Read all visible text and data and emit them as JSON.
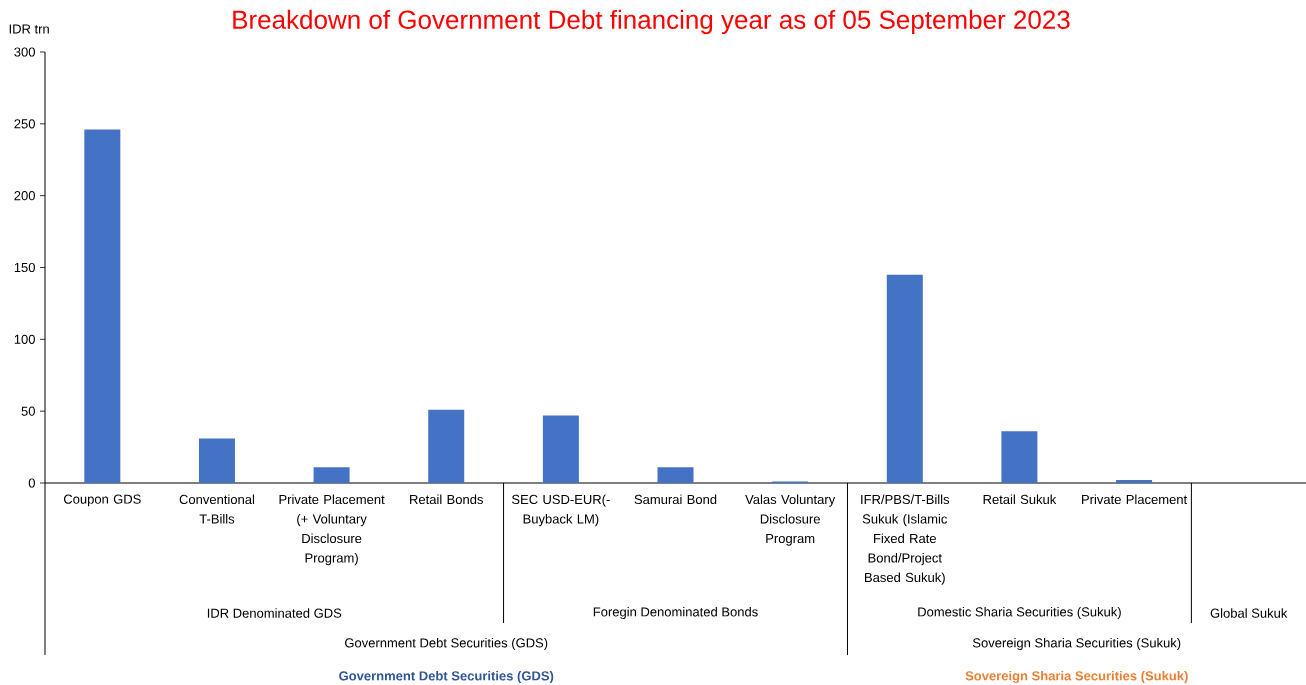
{
  "chart_data": {
    "type": "bar",
    "title": "Breakdown of Government Debt financing year as of 05 September 2023",
    "ylabel": "IDR trn",
    "categories": [
      "Coupon GDS",
      "Conventional T-Bills",
      "Private Placement (+ Voluntary Disclosure Program)",
      "Retail Bonds",
      "SEC USD-EUR(-Buyback LM)",
      "Samurai Bond",
      "Valas Voluntary Disclosure Program",
      "IFR/PBS/T-Bills Sukuk (Islamic Fixed Rate Bond/Project Based Sukuk)",
      "Retail Sukuk",
      "Private Placement",
      null
    ],
    "values": [
      246,
      31,
      11,
      51,
      47,
      11,
      1,
      145,
      36,
      2,
      null
    ],
    "color": "#4472c4",
    "ylim": [
      0,
      300
    ],
    "yticks": [
      0,
      50,
      100,
      150,
      200,
      250,
      300
    ],
    "annotations": [
      "IDR Denominated GDS",
      "Foregin Denominated Bonds",
      "Domestic Sharia Securities (Sukuk)",
      "Global Sukuk",
      "Government Debt Securities (GDS)",
      "Sovereign Sharia Securities (Sukuk)",
      "Government Debt Securities (GDS)",
      "Sovereign Sharia Securities (Sukuk)"
    ]
  }
}
